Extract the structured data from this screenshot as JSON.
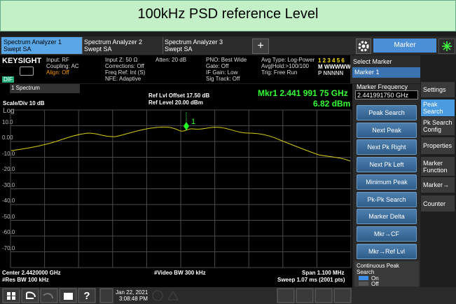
{
  "banner": {
    "title": "100kHz PSD reference Level"
  },
  "tabs": [
    {
      "line1": "Spectrum Analyzer 1",
      "line2": "Swept SA"
    },
    {
      "line1": "Spectrum Analyzer 2",
      "line2": "Swept SA"
    },
    {
      "line1": "Spectrum Analyzer 3",
      "line2": "Swept SA"
    }
  ],
  "add_tab": "+",
  "mode_menu": "Marker",
  "info": {
    "brand": "KEYSIGHT",
    "badge": "DIF",
    "col1": [
      "Input: RF",
      "Coupling: AC",
      "Align: Off"
    ],
    "col2": [
      "Input Z: 50 Ω",
      "Corrections: Off",
      "Freq Ref: Int (S)",
      "NFE: Adaptive"
    ],
    "col3": [
      "Atten: 20 dB"
    ],
    "col4": [
      "PNO: Best Wide",
      "Gate: Off",
      "IF Gain: Low",
      "Sig Track: Off"
    ],
    "col5": [
      "Avg Type: Log-Power",
      "Avg|Hold:>100/100",
      "Trig: Free Run"
    ],
    "traces": [
      "1 2 3 4 5 6",
      "M WWWWW",
      "P NNNNN"
    ],
    "select_marker": "Select Marker",
    "marker_choice": "Marker 1"
  },
  "plot": {
    "window": "1 Spectrum",
    "scale": "Scale/Div 10 dB",
    "log": "Log",
    "ref_offset": "Ref Lvl Offset 17.50 dB",
    "ref_level": "Ref Level 20.00 dBm",
    "marker_readout": "Mkr1  2.441 991 75 GHz",
    "marker_level": "6.82 dBm",
    "marker_label": "1",
    "y_labels": [
      "10.0",
      "0.00",
      "-10.0",
      "-20.0",
      "-30.0",
      "-40.0",
      "-50.0",
      "-60.0",
      "-70.0"
    ],
    "center": "Center 2.4420000 GHz",
    "res_bw": "#Res BW 100 kHz",
    "video_bw": "#Video BW 300 kHz",
    "span": "Span 1.100 MHz",
    "sweep": "Sweep 1.07 ms (2001 pts)"
  },
  "panel": {
    "field_label": "Marker Frequency",
    "field_value": "2.441991750 GHz",
    "buttons": [
      "Peak Search",
      "Next Peak",
      "Next Pk Right",
      "Next Pk Left",
      "Minimum Peak",
      "Pk-Pk Search",
      "Marker Delta",
      "Mkr→CF",
      "Mkr→Ref Lvl"
    ],
    "toggle_label": "Continuous Peak Search",
    "toggle_on": "On",
    "toggle_off": "Off"
  },
  "side_tabs": [
    "Settings",
    "Peak Search",
    "Pk Search Config",
    "Properties",
    "Marker Function",
    "Marker→",
    "Counter"
  ],
  "taskbar": {
    "date": "Jan 22, 2021",
    "time": "3:08:48 PM"
  }
}
